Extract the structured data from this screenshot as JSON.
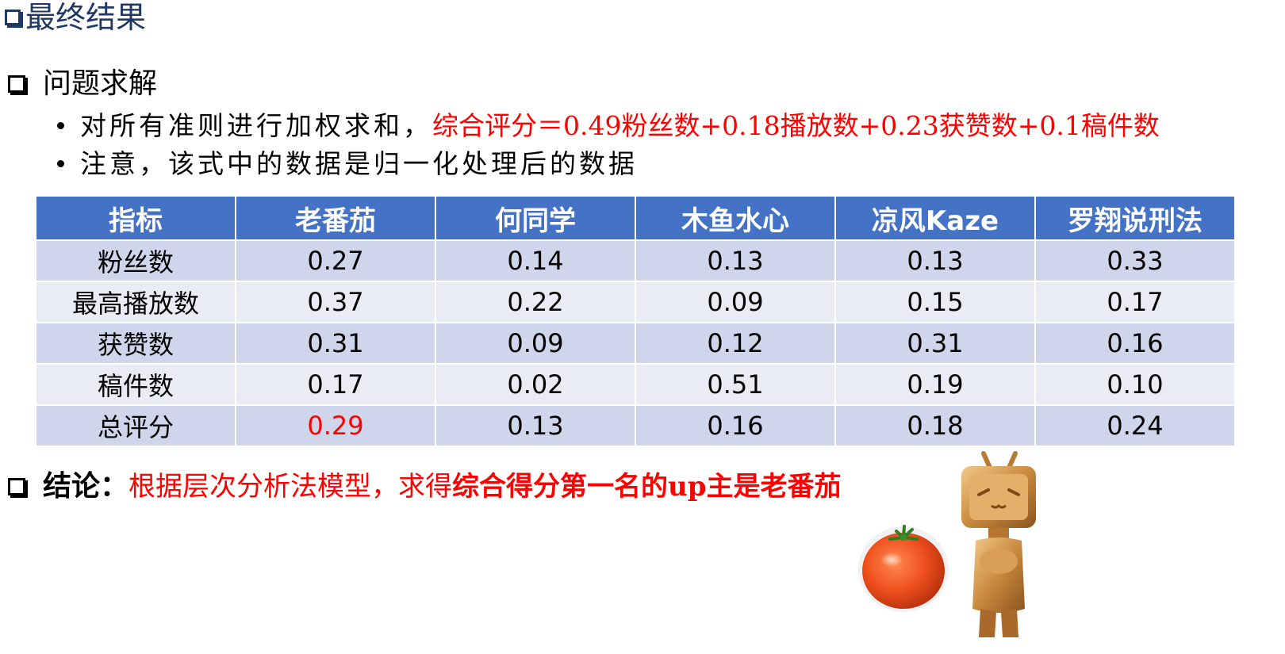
{
  "page_title": "最终结果",
  "section_solve": {
    "heading": "问题求解",
    "bullet_1_prefix": "对所有准则进行加权求和，",
    "bullet_1_formula": "综合评分＝0.49粉丝数+0.18播放数+0.23获赞数+0.1稿件数",
    "bullet_2": "注意，该式中的数据是归一化处理后的数据"
  },
  "table": {
    "headers": [
      "指标",
      "老番茄",
      "何同学",
      "木鱼水心",
      "凉风Kaze",
      "罗翔说刑法"
    ],
    "rows": [
      [
        "粉丝数",
        "0.27",
        "0.14",
        "0.13",
        "0.13",
        "0.33"
      ],
      [
        "最高播放数",
        "0.37",
        "0.22",
        "0.09",
        "0.15",
        "0.17"
      ],
      [
        "获赞数",
        "0.31",
        "0.09",
        "0.12",
        "0.31",
        "0.16"
      ],
      [
        "稿件数",
        "0.17",
        "0.02",
        "0.51",
        "0.19",
        "0.10"
      ],
      [
        "总评分",
        "0.29",
        "0.13",
        "0.16",
        "0.18",
        "0.24"
      ]
    ],
    "header_color": "#4472c4",
    "row_color_odd": "#cfd5ea",
    "row_color_even": "#e9ebf5",
    "highlight_color": "#ff0000"
  },
  "conclusion": {
    "label": "结论：",
    "body": "根据层次分析法模型，求得",
    "strong": "综合得分第一名的up主是老番茄"
  },
  "images": {
    "tomato": "tomato-image",
    "mascot": "bilibili-tv-mascot-trophy"
  }
}
